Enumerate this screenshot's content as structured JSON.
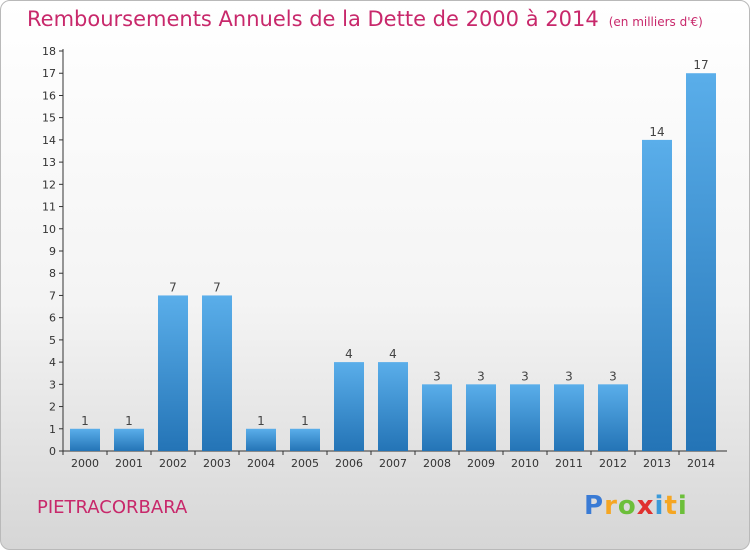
{
  "chart_data": {
    "type": "bar",
    "title": "Remboursements Annuels de la Dette de 2000 à 2014",
    "unit_label": "(en milliers d'€)",
    "categories": [
      "2000",
      "2001",
      "2002",
      "2003",
      "2004",
      "2005",
      "2006",
      "2007",
      "2008",
      "2009",
      "2010",
      "2011",
      "2012",
      "2013",
      "2014"
    ],
    "values": [
      1,
      1,
      7,
      7,
      1,
      1,
      4,
      4,
      3,
      3,
      3,
      3,
      3,
      14,
      17
    ],
    "data_labels": [
      "1",
      "1",
      "7",
      "7",
      "1",
      "1",
      "4",
      "4",
      "3",
      "3",
      "3",
      "3",
      "3",
      "14",
      "17"
    ],
    "yticks": [
      "0",
      "1",
      "2",
      "3",
      "4",
      "5",
      "6",
      "7",
      "8",
      "9",
      "10",
      "11",
      "12",
      "13",
      "14",
      "15",
      "16",
      "17",
      "18"
    ],
    "ylim": [
      0,
      18
    ],
    "xlabel": "",
    "ylabel": "",
    "bar_color": "#4a9fe0",
    "grid": false
  },
  "footer": {
    "commune": "PIETRACORBARA",
    "logo_letters": [
      "P",
      "r",
      "o",
      "x",
      "i",
      "t",
      "i"
    ]
  },
  "colors": {
    "title": "#c8286b",
    "bar_top": "#5aaeea",
    "bar_bottom": "#2474b6",
    "axis": "#333333"
  }
}
